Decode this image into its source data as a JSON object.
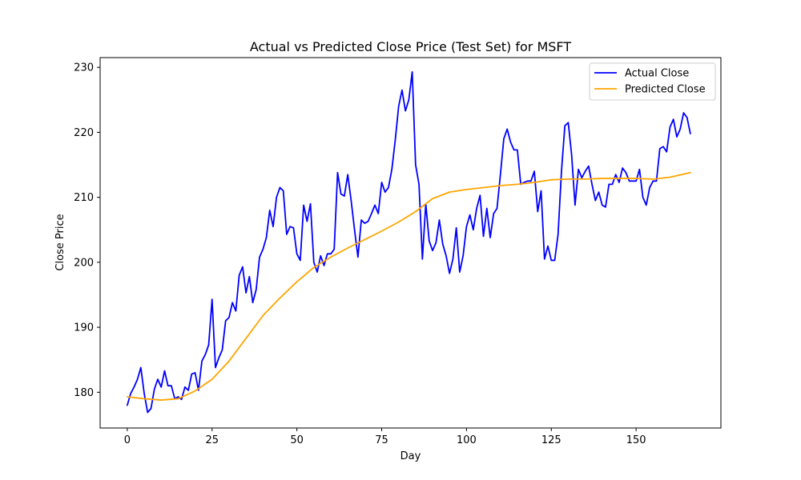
{
  "chart_data": {
    "type": "line",
    "title": "Actual vs Predicted Close Price (Test Set) for MSFT",
    "xlabel": "Day",
    "ylabel": "Close Price",
    "xlim": [
      -8,
      175
    ],
    "ylim": [
      174.5,
      231.5
    ],
    "xticks": [
      0,
      25,
      50,
      75,
      100,
      125,
      150
    ],
    "yticks": [
      180,
      190,
      200,
      210,
      220,
      230
    ],
    "grid": false,
    "legend_position": "upper-right",
    "series": [
      {
        "name": "Actual Close",
        "color": "#0000ff",
        "x_start": 0,
        "x_step": 1,
        "values": [
          178.0,
          179.8,
          180.8,
          182.0,
          183.8,
          179.8,
          176.9,
          177.5,
          180.5,
          182.0,
          180.8,
          183.3,
          181.0,
          181.0,
          179.0,
          179.3,
          178.9,
          180.8,
          180.3,
          182.8,
          183.0,
          180.3,
          184.8,
          185.8,
          187.3,
          194.3,
          183.8,
          185.3,
          186.5,
          191.0,
          191.5,
          193.8,
          192.5,
          198.0,
          199.3,
          195.3,
          197.8,
          193.8,
          195.8,
          200.8,
          202.0,
          203.8,
          208.0,
          205.5,
          210.0,
          211.5,
          211.0,
          204.3,
          205.5,
          205.3,
          201.3,
          200.3,
          208.8,
          206.3,
          209.0,
          200.0,
          198.5,
          201.0,
          199.5,
          201.3,
          201.3,
          202.0,
          213.8,
          210.5,
          210.2,
          213.5,
          209.5,
          205.0,
          200.8,
          206.5,
          206.0,
          206.3,
          207.5,
          208.8,
          207.5,
          212.3,
          210.8,
          211.5,
          214.3,
          218.8,
          224.0,
          226.5,
          223.3,
          225.0,
          229.3,
          215.0,
          212.0,
          200.5,
          209.0,
          203.3,
          201.8,
          203.0,
          206.5,
          202.8,
          201.0,
          198.3,
          200.5,
          205.3,
          198.5,
          201.0,
          205.5,
          207.3,
          205.0,
          208.3,
          210.3,
          204.0,
          208.3,
          203.8,
          207.5,
          208.3,
          213.5,
          219.0,
          220.5,
          218.5,
          217.3,
          217.3,
          212.0,
          212.3,
          212.5,
          212.5,
          214.0,
          207.8,
          211.0,
          200.5,
          202.5,
          200.3,
          200.3,
          204.3,
          214.0,
          221.0,
          221.5,
          216.5,
          208.8,
          214.3,
          213.0,
          214.0,
          214.8,
          212.0,
          209.5,
          210.8,
          208.8,
          208.5,
          212.0,
          212.0,
          213.5,
          212.3,
          214.5,
          213.8,
          212.5,
          212.5,
          212.5,
          214.3,
          210.0,
          208.8,
          211.5,
          212.5,
          212.5,
          217.5,
          217.8,
          217.0,
          220.8,
          222.0,
          219.3,
          220.5,
          223.0,
          222.3,
          219.8
        ]
      },
      {
        "name": "Predicted Close",
        "color": "#ffa500",
        "points": [
          [
            0,
            179.3
          ],
          [
            5,
            179.0
          ],
          [
            10,
            178.8
          ],
          [
            15,
            179.0
          ],
          [
            20,
            180.2
          ],
          [
            25,
            182.0
          ],
          [
            30,
            184.8
          ],
          [
            35,
            188.3
          ],
          [
            40,
            191.8
          ],
          [
            45,
            194.5
          ],
          [
            50,
            197.0
          ],
          [
            55,
            199.2
          ],
          [
            60,
            200.8
          ],
          [
            65,
            202.2
          ],
          [
            70,
            203.5
          ],
          [
            75,
            204.8
          ],
          [
            80,
            206.2
          ],
          [
            85,
            207.8
          ],
          [
            90,
            209.8
          ],
          [
            95,
            210.8
          ],
          [
            100,
            211.2
          ],
          [
            105,
            211.5
          ],
          [
            110,
            211.8
          ],
          [
            115,
            212.0
          ],
          [
            120,
            212.3
          ],
          [
            125,
            212.7
          ],
          [
            130,
            212.8
          ],
          [
            135,
            212.8
          ],
          [
            140,
            212.9
          ],
          [
            145,
            212.9
          ],
          [
            150,
            212.9
          ],
          [
            155,
            212.8
          ],
          [
            160,
            213.1
          ],
          [
            166,
            213.8
          ]
        ]
      }
    ]
  }
}
